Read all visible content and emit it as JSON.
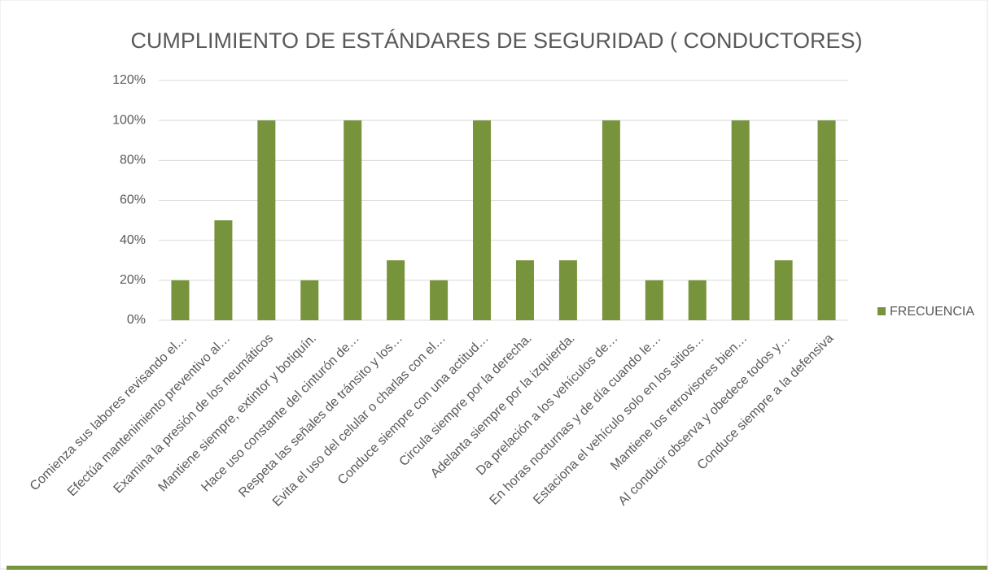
{
  "chart_data": {
    "type": "bar",
    "title": "CUMPLIMIENTO DE ESTÁNDARES DE SEGURIDAD ( CONDUCTORES)",
    "categories": [
      "Comienza sus labores revisando el…",
      "Efectúa mantenimiento preventivo al…",
      "Examina la presión de los neumáticos",
      "Mantiene siempre, extintor y botiquín.",
      "Hace uso constante del cinturón de…",
      "Respeta las señales de tránsito y los…",
      "Evita el uso del celular o charlas con el…",
      "Conduce siempre con una actitud…",
      "Circula siempre por la derecha.",
      "Adelanta siempre por la izquierda.",
      "Da prelación a los vehículos de…",
      "En horas nocturnas y de día cuando le…",
      "Estaciona el vehículo solo en los sitios…",
      "Mantiene los retrovisores bien…",
      "Al conducir observa y obedece todos y…",
      "Conduce siempre a la defensiva"
    ],
    "series": [
      {
        "name": "FRECUENCIA",
        "color": "#77933c",
        "values": [
          20,
          50,
          100,
          20,
          100,
          30,
          20,
          100,
          30,
          30,
          100,
          20,
          20,
          100,
          30,
          100
        ]
      }
    ],
    "ylim": [
      0,
      120
    ],
    "yticks": [
      {
        "value": 0,
        "label": "0%"
      },
      {
        "value": 20,
        "label": "20%"
      },
      {
        "value": 40,
        "label": "40%"
      },
      {
        "value": 60,
        "label": "60%"
      },
      {
        "value": 80,
        "label": "80%"
      },
      {
        "value": 100,
        "label": "100%"
      },
      {
        "value": 120,
        "label": "120%"
      }
    ],
    "grid": true,
    "legend": "right"
  }
}
